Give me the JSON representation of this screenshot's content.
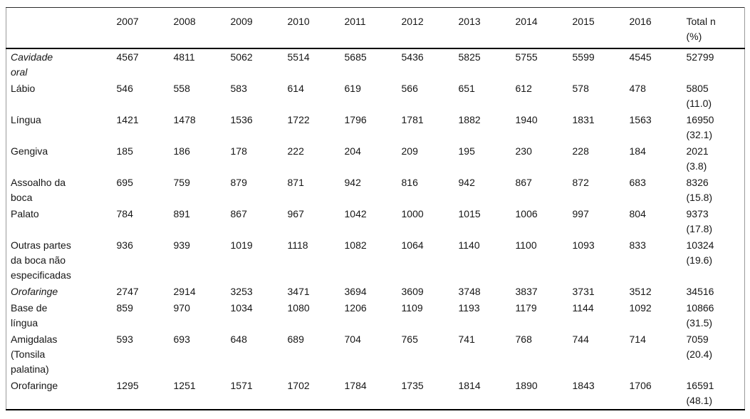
{
  "table": {
    "columns": [
      "",
      "2007",
      "2008",
      "2009",
      "2010",
      "2011",
      "2012",
      "2013",
      "2014",
      "2015",
      "2016",
      "Total n\n(%)"
    ],
    "rows": [
      {
        "label": "Cavidade\noral",
        "italic": true,
        "values": [
          4567,
          4811,
          5062,
          5514,
          5685,
          5436,
          5825,
          5755,
          5599,
          4545
        ],
        "total": "52799"
      },
      {
        "label": "Lábio",
        "italic": false,
        "values": [
          546,
          558,
          583,
          614,
          619,
          566,
          651,
          612,
          578,
          478
        ],
        "total": "5805\n(11.0)"
      },
      {
        "label": "Língua",
        "italic": false,
        "values": [
          1421,
          1478,
          1536,
          1722,
          1796,
          1781,
          1882,
          1940,
          1831,
          1563
        ],
        "total": "16950\n(32.1)"
      },
      {
        "label": "Gengiva",
        "italic": false,
        "values": [
          185,
          186,
          178,
          222,
          204,
          209,
          195,
          230,
          228,
          184
        ],
        "total": "2021\n(3.8)"
      },
      {
        "label": "Assoalho da\nboca",
        "italic": false,
        "values": [
          695,
          759,
          879,
          871,
          942,
          816,
          942,
          867,
          872,
          683
        ],
        "total": "8326\n(15.8)"
      },
      {
        "label": "Palato",
        "italic": false,
        "values": [
          784,
          891,
          867,
          967,
          1042,
          1000,
          1015,
          1006,
          997,
          804
        ],
        "total": "9373\n(17.8)"
      },
      {
        "label": "Outras partes\nda boca não\nespecificadas",
        "italic": false,
        "values": [
          936,
          939,
          1019,
          1118,
          1082,
          1064,
          1140,
          1100,
          1093,
          833
        ],
        "total": "10324\n(19.6)"
      },
      {
        "label": "Orofaringe",
        "italic": true,
        "values": [
          2747,
          2914,
          3253,
          3471,
          3694,
          3609,
          3748,
          3837,
          3731,
          3512
        ],
        "total": "34516"
      },
      {
        "label": "Base de\nlíngua",
        "italic": false,
        "values": [
          859,
          970,
          1034,
          1080,
          1206,
          1109,
          1193,
          1179,
          1144,
          1092
        ],
        "total": "10866\n(31.5)"
      },
      {
        "label": "Amigdalas\n(Tonsila\npalatina)",
        "italic": false,
        "values": [
          593,
          693,
          648,
          689,
          704,
          765,
          741,
          768,
          744,
          714
        ],
        "total": "7059\n(20.4)"
      },
      {
        "label": "Orofaringe",
        "italic": false,
        "values": [
          1295,
          1251,
          1571,
          1702,
          1784,
          1735,
          1814,
          1890,
          1843,
          1706
        ],
        "total": "16591\n(48.1)"
      }
    ]
  }
}
